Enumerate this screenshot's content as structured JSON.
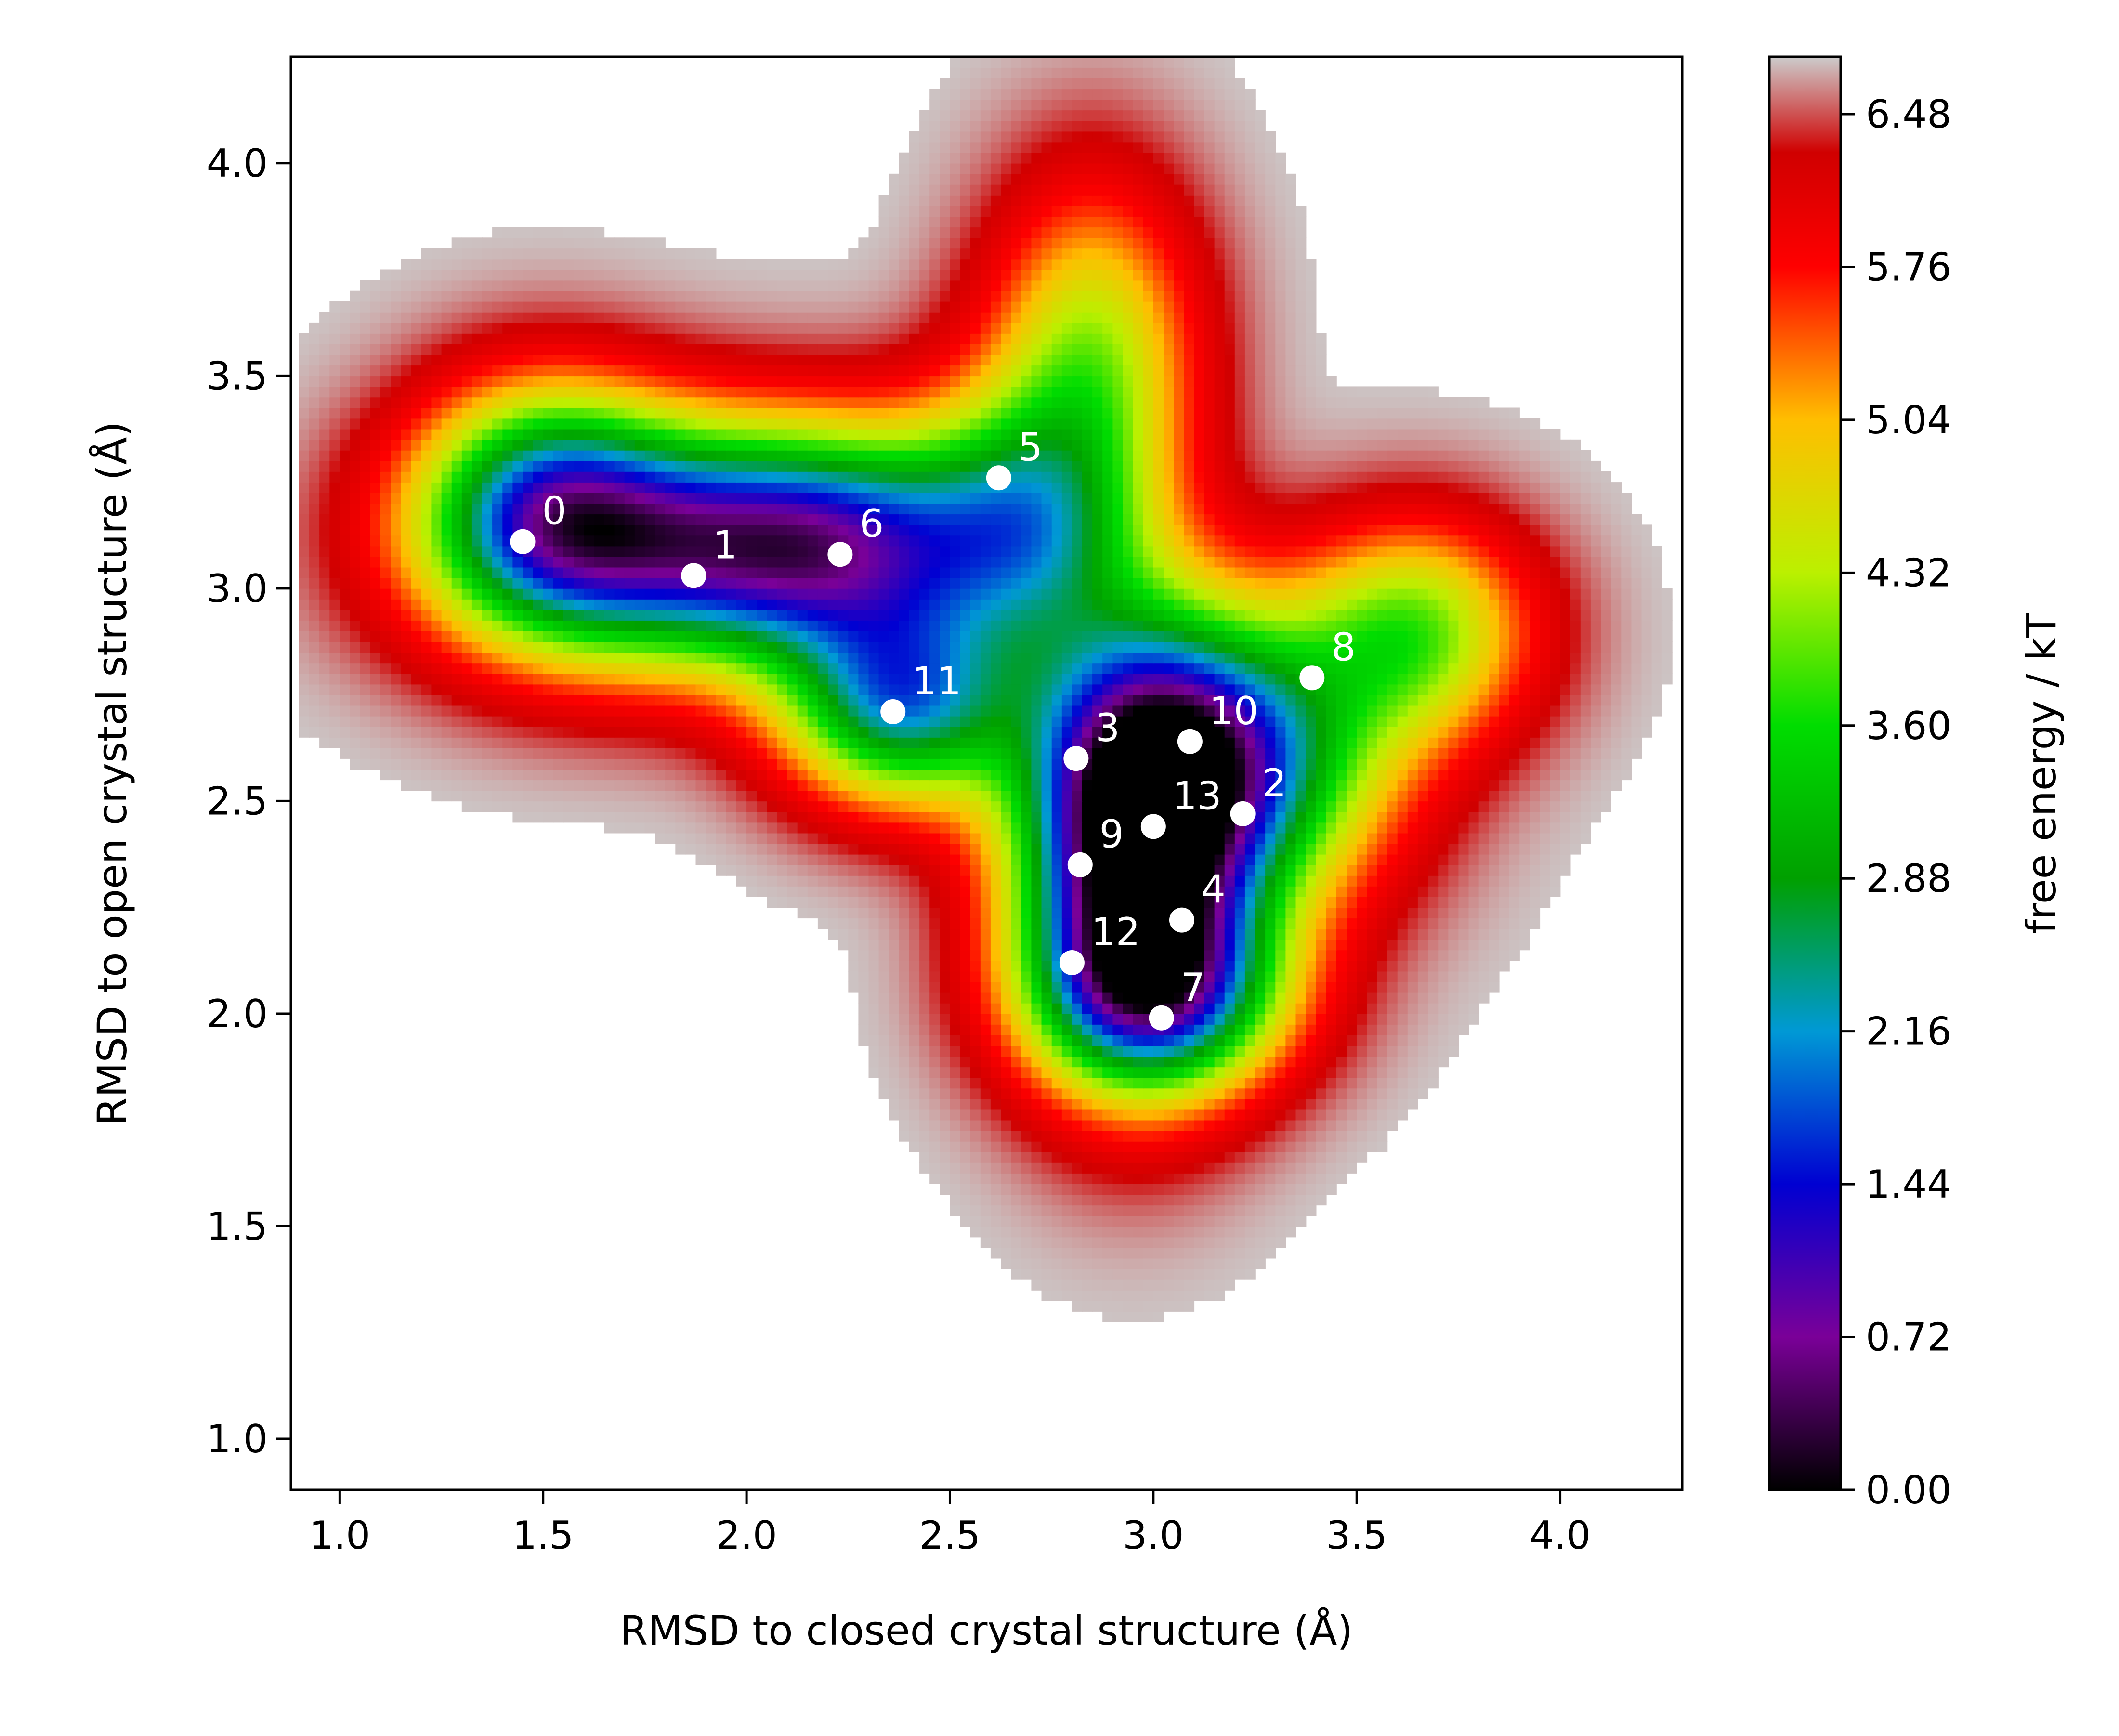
{
  "chart_data": {
    "type": "heatmap",
    "title": "",
    "xlabel": "RMSD to closed crystal structure (Å)",
    "ylabel": "RMSD to open crystal structure (Å)",
    "xlim": [
      0.88,
      4.3
    ],
    "ylim": [
      0.88,
      4.25
    ],
    "xticks": [
      1.0,
      1.5,
      2.0,
      2.5,
      3.0,
      3.5,
      4.0
    ],
    "xtick_labels": [
      "1.0",
      "1.5",
      "2.0",
      "2.5",
      "3.0",
      "3.5",
      "4.0"
    ],
    "yticks": [
      1.0,
      1.5,
      2.0,
      2.5,
      3.0,
      3.5,
      4.0
    ],
    "ytick_labels": [
      "1.0",
      "1.5",
      "2.0",
      "2.5",
      "3.0",
      "3.5",
      "4.0"
    ],
    "grid": false,
    "colorbar": {
      "label": "free energy / kT",
      "range": [
        0.0,
        6.75
      ],
      "ticks": [
        0.0,
        0.72,
        1.44,
        2.16,
        2.88,
        3.6,
        4.32,
        5.04,
        5.76,
        6.48
      ],
      "tick_labels": [
        "0.00",
        "0.72",
        "1.44",
        "2.16",
        "2.88",
        "3.60",
        "4.32",
        "5.04",
        "5.76",
        "6.48"
      ],
      "colormap": [
        {
          "v": 0.0,
          "color": "#000000"
        },
        {
          "v": 0.72,
          "color": "#7a0098"
        },
        {
          "v": 1.44,
          "color": "#0000d2"
        },
        {
          "v": 2.16,
          "color": "#0099d5"
        },
        {
          "v": 2.88,
          "color": "#00a000"
        },
        {
          "v": 3.6,
          "color": "#00dd00"
        },
        {
          "v": 4.32,
          "color": "#bbf000"
        },
        {
          "v": 5.04,
          "color": "#ffbe00"
        },
        {
          "v": 5.76,
          "color": "#ff0000"
        },
        {
          "v": 6.3,
          "color": "#d00000"
        },
        {
          "v": 6.75,
          "color": "#cccccc"
        }
      ]
    },
    "basins": [
      {
        "cx": 1.75,
        "cy": 3.1,
        "sx": 0.34,
        "sy": 0.2,
        "depth": 4.05
      },
      {
        "cx": 2.22,
        "cy": 3.1,
        "sx": 0.28,
        "sy": 0.19,
        "depth": 4.3
      },
      {
        "cx": 2.38,
        "cy": 2.72,
        "sx": 0.2,
        "sy": 0.16,
        "depth": 4.05
      },
      {
        "cx": 2.95,
        "cy": 2.4,
        "sx": 0.2,
        "sy": 0.33,
        "depth": 6.3
      },
      {
        "cx": 3.2,
        "cy": 2.6,
        "sx": 0.26,
        "sy": 0.24,
        "depth": 4.3
      },
      {
        "cx": 3.02,
        "cy": 2.05,
        "sx": 0.22,
        "sy": 0.16,
        "depth": 3.6
      },
      {
        "cx": 2.68,
        "cy": 3.15,
        "sx": 0.2,
        "sy": 0.22,
        "depth": 3.0
      },
      {
        "cx": 2.85,
        "cy": 3.55,
        "sx": 0.18,
        "sy": 0.28,
        "depth": 2.4
      },
      {
        "cx": 3.65,
        "cy": 2.9,
        "sx": 0.2,
        "sy": 0.18,
        "depth": 2.6
      },
      {
        "cx": 1.5,
        "cy": 3.2,
        "sx": 0.22,
        "sy": 0.2,
        "depth": 3.2
      }
    ],
    "microstates": [
      {
        "label": "0",
        "x": 1.45,
        "y": 3.11
      },
      {
        "label": "1",
        "x": 1.87,
        "y": 3.03
      },
      {
        "label": "2",
        "x": 3.22,
        "y": 2.47
      },
      {
        "label": "3",
        "x": 2.81,
        "y": 2.6
      },
      {
        "label": "4",
        "x": 3.07,
        "y": 2.22
      },
      {
        "label": "5",
        "x": 2.62,
        "y": 3.26
      },
      {
        "label": "6",
        "x": 2.23,
        "y": 3.08
      },
      {
        "label": "7",
        "x": 3.02,
        "y": 1.99
      },
      {
        "label": "8",
        "x": 3.39,
        "y": 2.79
      },
      {
        "label": "9",
        "x": 2.82,
        "y": 2.35
      },
      {
        "label": "10",
        "x": 3.09,
        "y": 2.64
      },
      {
        "label": "11",
        "x": 2.36,
        "y": 2.71
      },
      {
        "label": "12",
        "x": 2.8,
        "y": 2.12
      },
      {
        "label": "13",
        "x": 3.0,
        "y": 2.44
      }
    ]
  }
}
